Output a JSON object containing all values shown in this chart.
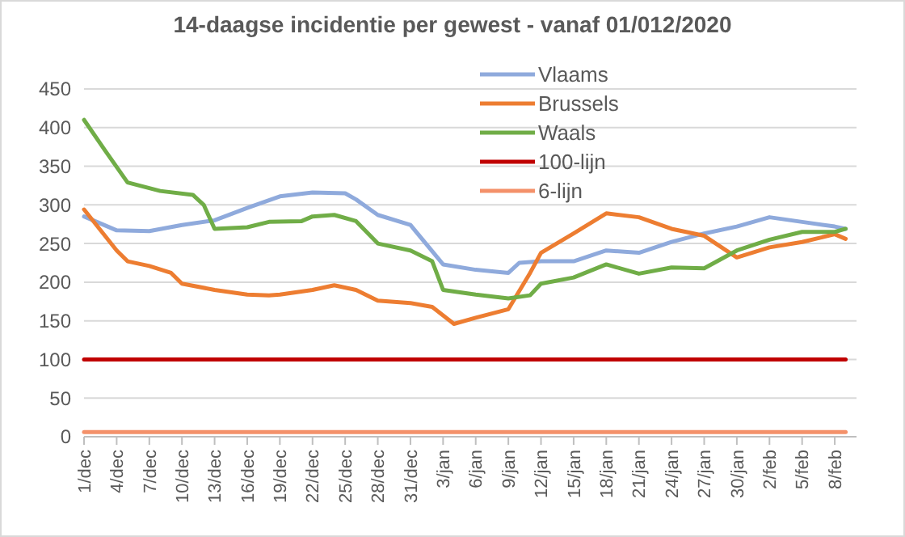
{
  "chart_data": {
    "type": "line",
    "title": "14-daagse incidentie per gewest - vanaf 01/012/2020",
    "xlim": [
      "2020-12-01",
      "2021-02-10"
    ],
    "xticks": [
      {
        "value": "2020-12-01",
        "label": "1/dec"
      },
      {
        "value": "2020-12-04",
        "label": "4/dec"
      },
      {
        "value": "2020-12-07",
        "label": "7/dec"
      },
      {
        "value": "2020-12-10",
        "label": "10/dec"
      },
      {
        "value": "2020-12-13",
        "label": "13/dec"
      },
      {
        "value": "2020-12-16",
        "label": "16/dec"
      },
      {
        "value": "2020-12-19",
        "label": "19/dec"
      },
      {
        "value": "2020-12-22",
        "label": "22/dec"
      },
      {
        "value": "2020-12-25",
        "label": "25/dec"
      },
      {
        "value": "2020-12-28",
        "label": "28/dec"
      },
      {
        "value": "2020-12-31",
        "label": "31/dec"
      },
      {
        "value": "2021-01-03",
        "label": "3/jan"
      },
      {
        "value": "2021-01-06",
        "label": "6/jan"
      },
      {
        "value": "2021-01-09",
        "label": "9/jan"
      },
      {
        "value": "2021-01-12",
        "label": "12/jan"
      },
      {
        "value": "2021-01-15",
        "label": "15/jan"
      },
      {
        "value": "2021-01-18",
        "label": "18/jan"
      },
      {
        "value": "2021-01-21",
        "label": "21/jan"
      },
      {
        "value": "2021-01-24",
        "label": "24/jan"
      },
      {
        "value": "2021-01-27",
        "label": "27/jan"
      },
      {
        "value": "2021-01-30",
        "label": "30/jan"
      },
      {
        "value": "2021-02-02",
        "label": "2/feb"
      },
      {
        "value": "2021-02-05",
        "label": "5/feb"
      },
      {
        "value": "2021-02-08",
        "label": "8/feb"
      }
    ],
    "ylim": [
      0,
      450
    ],
    "yticks": [
      0,
      50,
      100,
      150,
      200,
      250,
      300,
      350,
      400,
      450
    ],
    "grid": "y",
    "legend": "top right",
    "marker": "none",
    "line_style": "solid",
    "series": [
      {
        "name": "Vlaams",
        "color": "#8faadc",
        "x": [
          "2020-12-01",
          "2020-12-04",
          "2020-12-07",
          "2020-12-10",
          "2020-12-13",
          "2020-12-16",
          "2020-12-19",
          "2020-12-22",
          "2020-12-25",
          "2020-12-26",
          "2020-12-28",
          "2020-12-31",
          "2021-01-03",
          "2021-01-06",
          "2021-01-09",
          "2021-01-10",
          "2021-01-12",
          "2021-01-15",
          "2021-01-18",
          "2021-01-21",
          "2021-01-24",
          "2021-01-27",
          "2021-01-30",
          "2021-02-02",
          "2021-02-05",
          "2021-02-08",
          "2021-02-09"
        ],
        "values": [
          285,
          267,
          266,
          274,
          280,
          296,
          311,
          316,
          315,
          307,
          287,
          274,
          223,
          216,
          212,
          225,
          227,
          227,
          241,
          238,
          252,
          263,
          272,
          284,
          278,
          272,
          269
        ]
      },
      {
        "name": "Brussels",
        "color": "#ed7d31",
        "x": [
          "2020-12-01",
          "2020-12-04",
          "2020-12-05",
          "2020-12-07",
          "2020-12-09",
          "2020-12-10",
          "2020-12-13",
          "2020-12-16",
          "2020-12-18",
          "2020-12-19",
          "2020-12-22",
          "2020-12-24",
          "2020-12-26",
          "2020-12-28",
          "2020-12-31",
          "2021-01-02",
          "2021-01-04",
          "2021-01-06",
          "2021-01-09",
          "2021-01-11",
          "2021-01-12",
          "2021-01-15",
          "2021-01-18",
          "2021-01-21",
          "2021-01-24",
          "2021-01-27",
          "2021-01-30",
          "2021-02-02",
          "2021-02-05",
          "2021-02-08",
          "2021-02-09"
        ],
        "values": [
          294,
          241,
          227,
          221,
          212,
          198,
          190,
          184,
          183,
          184,
          190,
          196,
          190,
          176,
          173,
          168,
          146,
          154,
          165,
          212,
          238,
          263,
          289,
          284,
          269,
          260,
          232,
          245,
          252,
          262,
          256
        ]
      },
      {
        "name": "Waals",
        "color": "#70ad47",
        "x": [
          "2020-12-01",
          "2020-12-03",
          "2020-12-05",
          "2020-12-08",
          "2020-12-11",
          "2020-12-12",
          "2020-12-13",
          "2020-12-16",
          "2020-12-18",
          "2020-12-21",
          "2020-12-22",
          "2020-12-24",
          "2020-12-26",
          "2020-12-28",
          "2020-12-31",
          "2021-01-02",
          "2021-01-03",
          "2021-01-06",
          "2021-01-09",
          "2021-01-11",
          "2021-01-12",
          "2021-01-15",
          "2021-01-18",
          "2021-01-21",
          "2021-01-24",
          "2021-01-27",
          "2021-01-30",
          "2021-02-02",
          "2021-02-05",
          "2021-02-08",
          "2021-02-09"
        ],
        "values": [
          410,
          369,
          329,
          318,
          313,
          300,
          269,
          271,
          278,
          279,
          285,
          287,
          279,
          250,
          241,
          227,
          190,
          184,
          179,
          183,
          198,
          206,
          223,
          211,
          219,
          218,
          241,
          255,
          265,
          265,
          269
        ]
      },
      {
        "name": "100-lijn",
        "color": "#c00000",
        "x": [
          "2020-12-01",
          "2021-02-09"
        ],
        "values": [
          100,
          100
        ]
      },
      {
        "name": "6-lijn",
        "color": "#f4916a",
        "x": [
          "2020-12-01",
          "2021-02-09"
        ],
        "values": [
          6,
          6
        ]
      }
    ]
  }
}
